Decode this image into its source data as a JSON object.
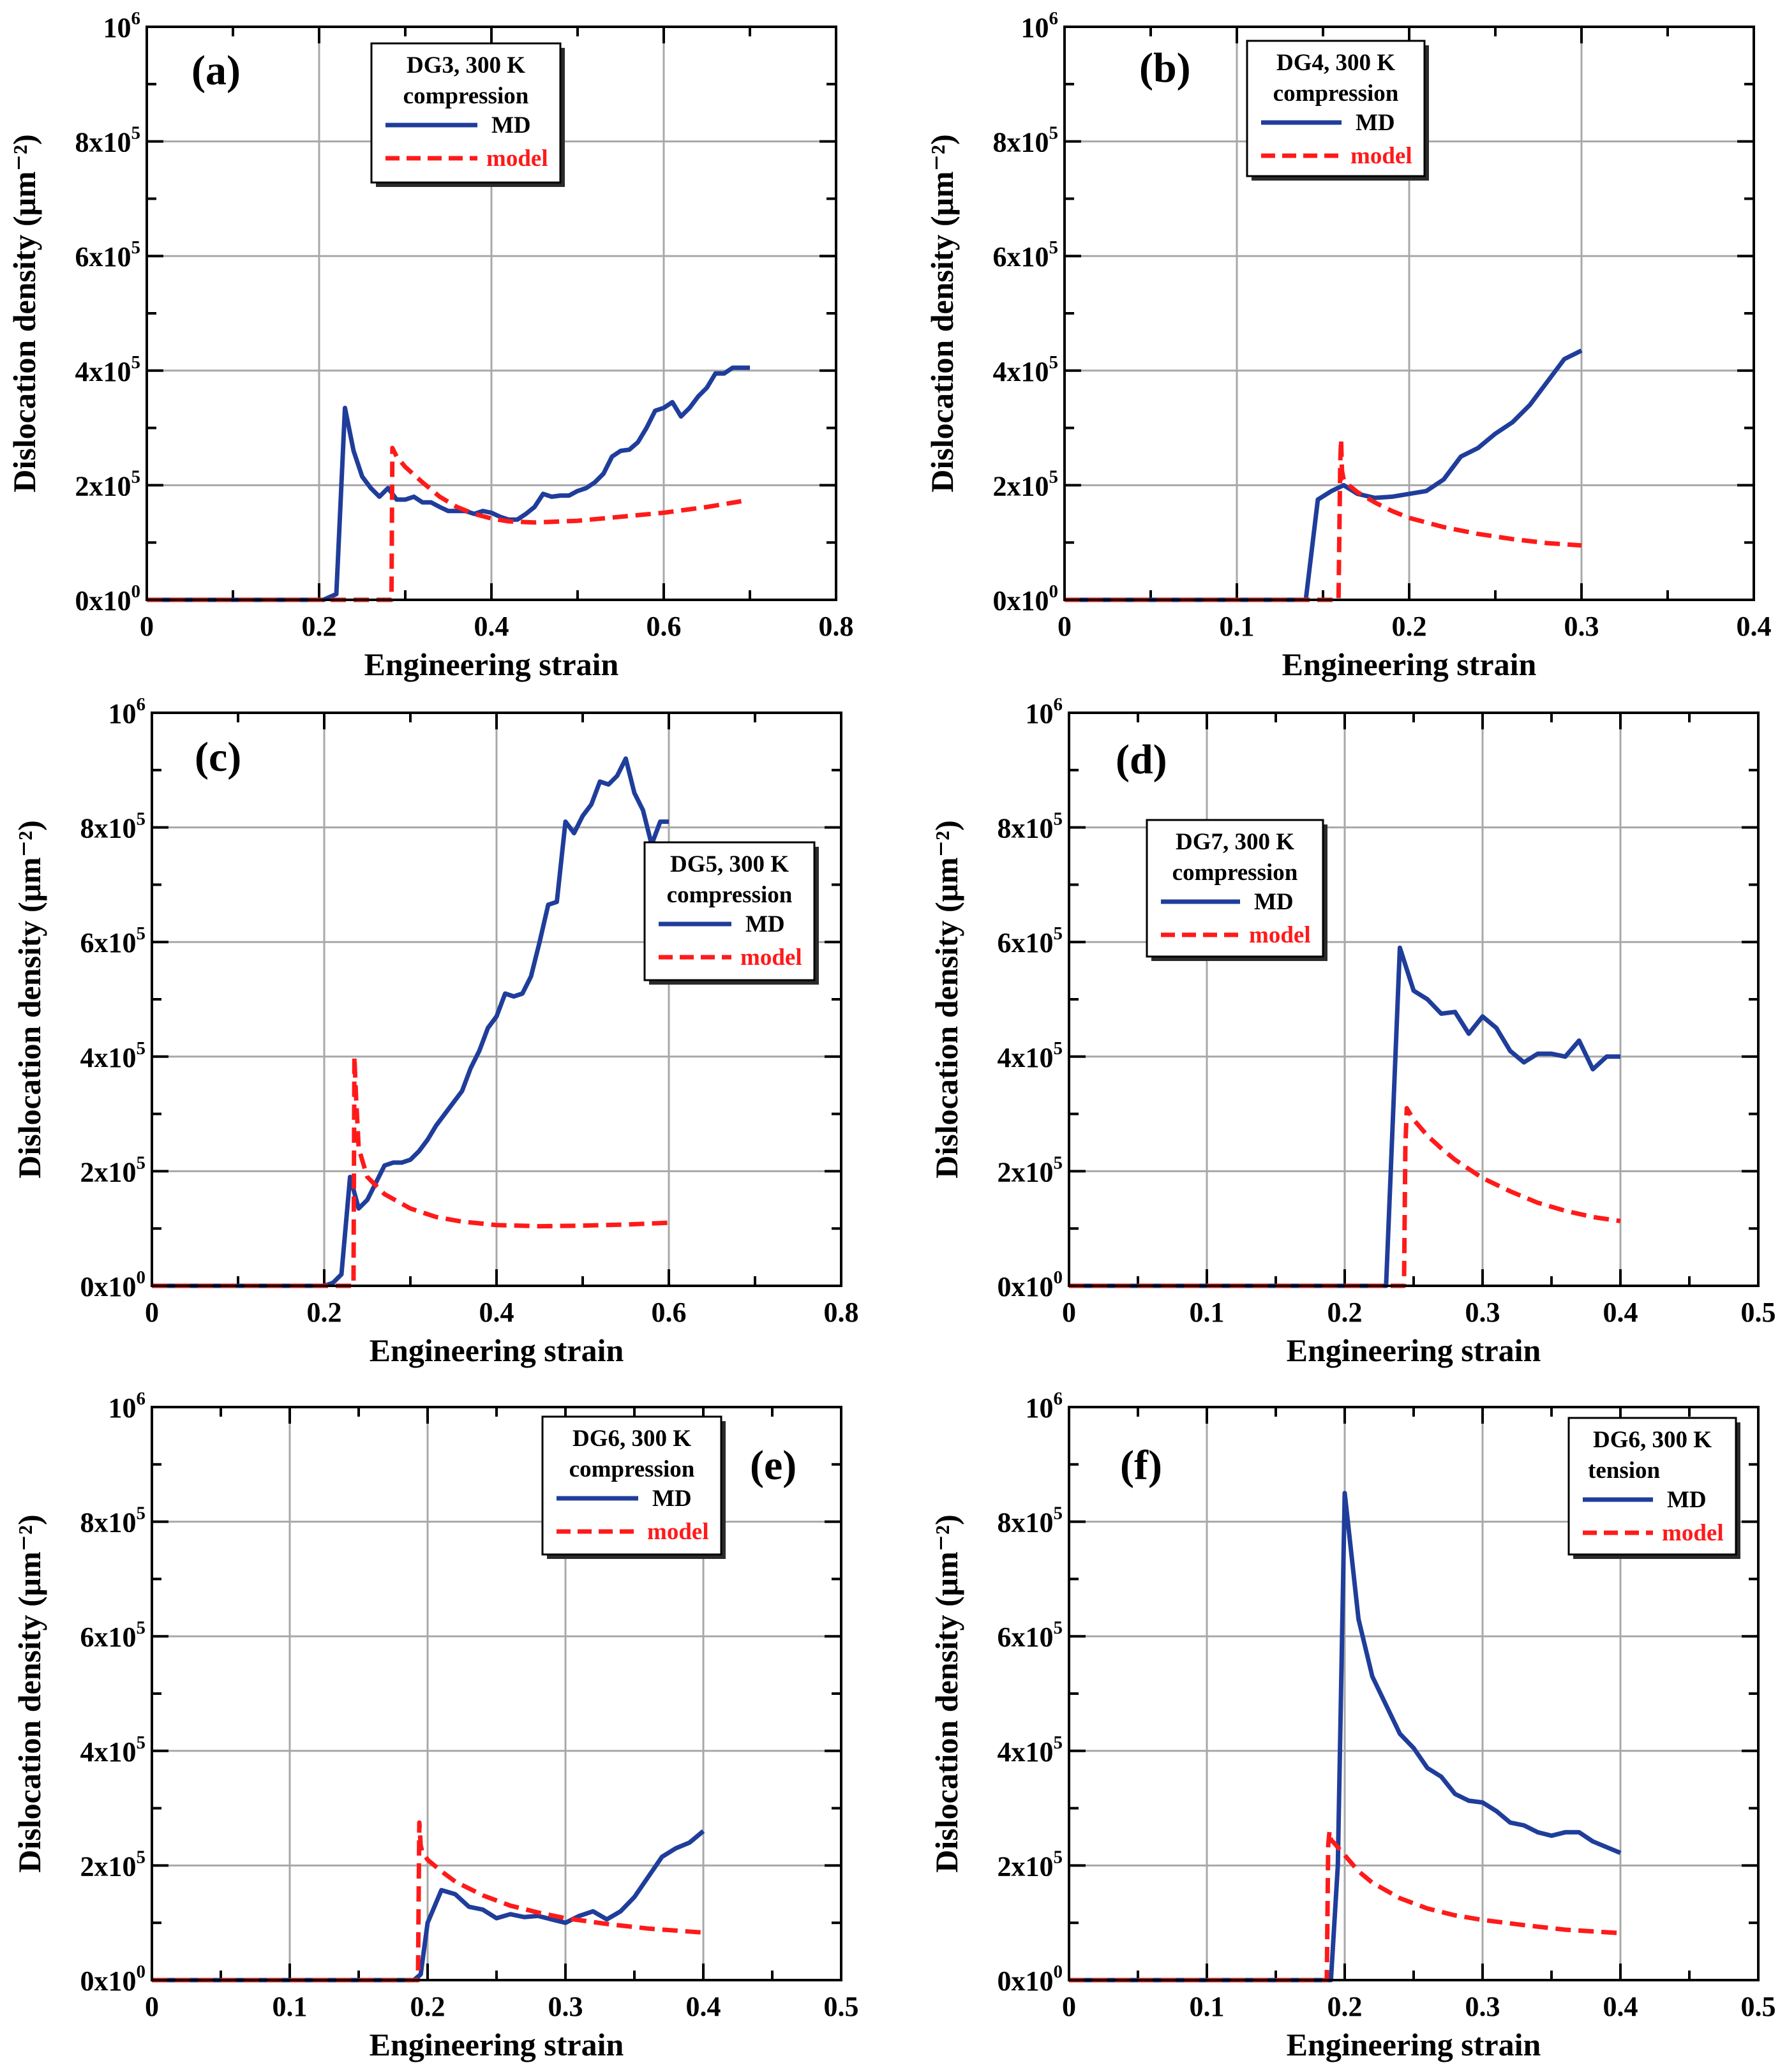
{
  "colors": {
    "md": "#1f3d9a",
    "model": "#ff1a1a",
    "grid": "#a8a8a8",
    "axis": "#000000"
  },
  "chart_data": [
    {
      "type": "line",
      "panel": "(a)",
      "xlabel": "Engineering strain",
      "ylabel": "Dislocation density (μm⁻²)",
      "xlim": [
        0,
        0.8
      ],
      "ylim": [
        0,
        1000000
      ],
      "xticks": [
        0,
        0.2,
        0.4,
        0.6,
        0.8
      ],
      "xtick_labels": [
        "0",
        "0.2",
        "0.4",
        "0.6",
        "0.8"
      ],
      "ytick_labels": [
        [
          "0x10",
          "0"
        ],
        [
          "2x10",
          "5"
        ],
        [
          "4x10",
          "5"
        ],
        [
          "6x10",
          "5"
        ],
        [
          "8x10",
          "5"
        ],
        [
          "10",
          "6"
        ]
      ],
      "legend": {
        "title": [
          "DG3, 300 K",
          "compression"
        ],
        "entries": [
          "MD",
          "model"
        ],
        "position": "top-center"
      },
      "series": [
        {
          "name": "MD",
          "style": "solid",
          "x": [
            0,
            0.2,
            0.205,
            0.22,
            0.23,
            0.24,
            0.25,
            0.26,
            0.27,
            0.28,
            0.29,
            0.3,
            0.31,
            0.32,
            0.33,
            0.34,
            0.35,
            0.36,
            0.37,
            0.38,
            0.39,
            0.4,
            0.41,
            0.42,
            0.43,
            0.44,
            0.45,
            0.46,
            0.47,
            0.48,
            0.49,
            0.5,
            0.51,
            0.52,
            0.53,
            0.54,
            0.55,
            0.56,
            0.57,
            0.58,
            0.59,
            0.6,
            0.61,
            0.62,
            0.63,
            0.64,
            0.65,
            0.66,
            0.67,
            0.68,
            0.69,
            0.7
          ],
          "y": [
            0,
            0,
            0,
            10000,
            335000,
            260000,
            215000,
            195000,
            180000,
            195000,
            175000,
            175000,
            180000,
            170000,
            170000,
            162000,
            155000,
            155000,
            155000,
            150000,
            155000,
            152000,
            145000,
            140000,
            140000,
            150000,
            162000,
            185000,
            180000,
            182000,
            182000,
            190000,
            195000,
            205000,
            220000,
            250000,
            260000,
            262000,
            275000,
            300000,
            330000,
            335000,
            345000,
            320000,
            335000,
            355000,
            370000,
            395000,
            395000,
            405000,
            405000,
            405000
          ]
        },
        {
          "name": "model",
          "style": "dashed",
          "x": [
            0,
            0.284,
            0.285,
            0.29,
            0.3,
            0.32,
            0.34,
            0.36,
            0.38,
            0.4,
            0.42,
            0.45,
            0.5,
            0.55,
            0.6,
            0.65,
            0.69
          ],
          "y": [
            0,
            0,
            265000,
            250000,
            232000,
            205000,
            180000,
            162000,
            150000,
            142000,
            137000,
            135000,
            138000,
            145000,
            152000,
            162000,
            172000
          ]
        }
      ]
    },
    {
      "type": "line",
      "panel": "(b)",
      "xlabel": "Engineering strain",
      "ylabel": "Dislocation density (μm⁻²)",
      "xlim": [
        0,
        0.4
      ],
      "ylim": [
        0,
        1000000
      ],
      "xticks": [
        0,
        0.1,
        0.2,
        0.3,
        0.4
      ],
      "xtick_labels": [
        "0",
        "0.1",
        "0.2",
        "0.3",
        "0.4"
      ],
      "ytick_labels": [
        [
          "0x10",
          "0"
        ],
        [
          "2x10",
          "5"
        ],
        [
          "4x10",
          "5"
        ],
        [
          "6x10",
          "5"
        ],
        [
          "8x10",
          "5"
        ],
        [
          "10",
          "6"
        ]
      ],
      "legend": {
        "title": [
          "DG4, 300 K",
          "compression"
        ],
        "entries": [
          "MD",
          "model"
        ],
        "position": "top-center"
      },
      "series": [
        {
          "name": "MD",
          "style": "solid",
          "x": [
            0,
            0.14,
            0.147,
            0.155,
            0.162,
            0.17,
            0.18,
            0.19,
            0.2,
            0.21,
            0.22,
            0.23,
            0.24,
            0.25,
            0.26,
            0.27,
            0.28,
            0.29,
            0.3
          ],
          "y": [
            0,
            0,
            175000,
            190000,
            200000,
            185000,
            178000,
            180000,
            185000,
            190000,
            210000,
            250000,
            265000,
            290000,
            310000,
            340000,
            380000,
            420000,
            435000
          ]
        },
        {
          "name": "model",
          "style": "dashed",
          "x": [
            0,
            0.159,
            0.16,
            0.1605,
            0.161,
            0.162,
            0.165,
            0.17,
            0.18,
            0.19,
            0.2,
            0.22,
            0.24,
            0.26,
            0.28,
            0.3
          ],
          "y": [
            0,
            0,
            240000,
            280000,
            225000,
            210000,
            200000,
            188000,
            170000,
            155000,
            143000,
            127000,
            115000,
            106000,
            99000,
            95000
          ]
        }
      ]
    },
    {
      "type": "line",
      "panel": "(c)",
      "xlabel": "Engineering strain",
      "ylabel": "Dislocation density (μm⁻²)",
      "xlim": [
        0,
        0.8
      ],
      "ylim": [
        0,
        1000000
      ],
      "xticks": [
        0,
        0.2,
        0.4,
        0.6,
        0.8
      ],
      "xtick_labels": [
        "0",
        "0.2",
        "0.4",
        "0.6",
        "0.8"
      ],
      "ytick_labels": [
        [
          "0x10",
          "0"
        ],
        [
          "2x10",
          "5"
        ],
        [
          "4x10",
          "5"
        ],
        [
          "6x10",
          "5"
        ],
        [
          "8x10",
          "5"
        ],
        [
          "10",
          "6"
        ]
      ],
      "legend": {
        "title": [
          "DG5, 300 K",
          "compression"
        ],
        "entries": [
          "MD",
          "model"
        ],
        "position": "right"
      },
      "series": [
        {
          "name": "MD",
          "style": "solid",
          "x": [
            0,
            0.2,
            0.21,
            0.22,
            0.23,
            0.24,
            0.25,
            0.26,
            0.27,
            0.28,
            0.29,
            0.3,
            0.31,
            0.32,
            0.33,
            0.34,
            0.35,
            0.36,
            0.37,
            0.38,
            0.39,
            0.4,
            0.41,
            0.42,
            0.43,
            0.44,
            0.45,
            0.46,
            0.47,
            0.48,
            0.49,
            0.5,
            0.51,
            0.52,
            0.53,
            0.54,
            0.55,
            0.56,
            0.57,
            0.58,
            0.59,
            0.6
          ],
          "y": [
            0,
            0,
            5000,
            20000,
            190000,
            135000,
            150000,
            180000,
            210000,
            215000,
            215000,
            220000,
            235000,
            255000,
            280000,
            300000,
            320000,
            340000,
            380000,
            410000,
            450000,
            470000,
            510000,
            505000,
            510000,
            540000,
            600000,
            665000,
            670000,
            810000,
            790000,
            820000,
            840000,
            880000,
            875000,
            890000,
            920000,
            860000,
            830000,
            770000,
            810000,
            810000
          ]
        },
        {
          "name": "model",
          "style": "dashed",
          "x": [
            0,
            0.234,
            0.235,
            0.237,
            0.24,
            0.25,
            0.27,
            0.3,
            0.33,
            0.36,
            0.4,
            0.45,
            0.5,
            0.55,
            0.6
          ],
          "y": [
            0,
            0,
            400000,
            330000,
            240000,
            190000,
            160000,
            135000,
            120000,
            112000,
            106000,
            104000,
            105000,
            107000,
            110000
          ]
        }
      ]
    },
    {
      "type": "line",
      "panel": "(d)",
      "xlabel": "Engineering strain",
      "ylabel": "Dislocation density (μm⁻²)",
      "xlim": [
        0,
        0.5
      ],
      "ylim": [
        0,
        1000000
      ],
      "xticks": [
        0,
        0.1,
        0.2,
        0.3,
        0.4,
        0.5
      ],
      "xtick_labels": [
        "0",
        "0.1",
        "0.2",
        "0.3",
        "0.4",
        "0.5"
      ],
      "ytick_labels": [
        [
          "0x10",
          "0"
        ],
        [
          "2x10",
          "5"
        ],
        [
          "4x10",
          "5"
        ],
        [
          "6x10",
          "5"
        ],
        [
          "8x10",
          "5"
        ],
        [
          "10",
          "6"
        ]
      ],
      "legend": {
        "title": [
          "DG7, 300 K",
          "compression"
        ],
        "entries": [
          "MD",
          "model"
        ],
        "position": "left"
      },
      "series": [
        {
          "name": "MD",
          "style": "solid",
          "x": [
            0,
            0.23,
            0.24,
            0.25,
            0.26,
            0.27,
            0.28,
            0.29,
            0.3,
            0.31,
            0.32,
            0.33,
            0.34,
            0.35,
            0.36,
            0.37,
            0.38,
            0.39,
            0.4
          ],
          "y": [
            0,
            0,
            590000,
            515000,
            500000,
            475000,
            478000,
            440000,
            470000,
            450000,
            410000,
            390000,
            405000,
            405000,
            400000,
            428000,
            378000,
            400000,
            400000
          ]
        },
        {
          "name": "model",
          "style": "dashed",
          "x": [
            0,
            0.243,
            0.244,
            0.245,
            0.25,
            0.26,
            0.27,
            0.28,
            0.3,
            0.32,
            0.34,
            0.36,
            0.38,
            0.4
          ],
          "y": [
            0,
            0,
            240000,
            310000,
            290000,
            262000,
            240000,
            220000,
            188000,
            165000,
            145000,
            131000,
            120000,
            113000
          ]
        }
      ]
    },
    {
      "type": "line",
      "panel": "(e)",
      "xlabel": "Engineering strain",
      "ylabel": "Dislocation density (μm⁻²)",
      "xlim": [
        0,
        0.5
      ],
      "ylim": [
        0,
        1000000
      ],
      "xticks": [
        0,
        0.1,
        0.2,
        0.3,
        0.4,
        0.5
      ],
      "xtick_labels": [
        "0",
        "0.1",
        "0.2",
        "0.3",
        "0.4",
        "0.5"
      ],
      "ytick_labels": [
        [
          "0x10",
          "0"
        ],
        [
          "2x10",
          "5"
        ],
        [
          "4x10",
          "5"
        ],
        [
          "6x10",
          "5"
        ],
        [
          "8x10",
          "5"
        ],
        [
          "10",
          "6"
        ]
      ],
      "legend": {
        "title": [
          "DG6, 300 K",
          "compression"
        ],
        "entries": [
          "MD",
          "model"
        ],
        "position": "top-right"
      },
      "series": [
        {
          "name": "MD",
          "style": "solid",
          "x": [
            0,
            0.19,
            0.195,
            0.2,
            0.21,
            0.22,
            0.23,
            0.24,
            0.25,
            0.26,
            0.27,
            0.28,
            0.29,
            0.3,
            0.31,
            0.32,
            0.33,
            0.34,
            0.35,
            0.36,
            0.37,
            0.38,
            0.39,
            0.4
          ],
          "y": [
            0,
            0,
            10000,
            100000,
            157000,
            150000,
            128000,
            123000,
            108000,
            115000,
            110000,
            112000,
            106000,
            100000,
            112000,
            120000,
            106000,
            120000,
            145000,
            180000,
            215000,
            230000,
            240000,
            260000
          ]
        },
        {
          "name": "model",
          "style": "dashed",
          "x": [
            0,
            0.193,
            0.194,
            0.195,
            0.196,
            0.2,
            0.21,
            0.22,
            0.24,
            0.26,
            0.28,
            0.3,
            0.33,
            0.36,
            0.4
          ],
          "y": [
            0,
            0,
            275000,
            235000,
            225000,
            210000,
            190000,
            172000,
            148000,
            130000,
            118000,
            108000,
            98000,
            90000,
            83000
          ]
        }
      ]
    },
    {
      "type": "line",
      "panel": "(f)",
      "xlabel": "Engineering strain",
      "ylabel": "Dislocation density (μm⁻²)",
      "xlim": [
        0,
        0.5
      ],
      "ylim": [
        0,
        1000000
      ],
      "xticks": [
        0,
        0.1,
        0.2,
        0.3,
        0.4,
        0.5
      ],
      "xtick_labels": [
        "0",
        "0.1",
        "0.2",
        "0.3",
        "0.4",
        "0.5"
      ],
      "ytick_labels": [
        [
          "0x10",
          "0"
        ],
        [
          "2x10",
          "5"
        ],
        [
          "4x10",
          "5"
        ],
        [
          "6x10",
          "5"
        ],
        [
          "8x10",
          "5"
        ],
        [
          "10",
          "6"
        ]
      ],
      "legend": {
        "title": [
          "DG6, 300 K",
          "tension"
        ],
        "entries": [
          "MD",
          "model"
        ],
        "position": "top-right"
      },
      "series": [
        {
          "name": "MD",
          "style": "solid",
          "x": [
            0,
            0.19,
            0.195,
            0.2,
            0.21,
            0.22,
            0.23,
            0.24,
            0.25,
            0.26,
            0.27,
            0.28,
            0.29,
            0.3,
            0.31,
            0.32,
            0.33,
            0.34,
            0.35,
            0.36,
            0.37,
            0.38,
            0.39,
            0.4
          ],
          "y": [
            0,
            0,
            200000,
            850000,
            630000,
            530000,
            480000,
            430000,
            405000,
            370000,
            355000,
            325000,
            313000,
            310000,
            295000,
            275000,
            270000,
            258000,
            252000,
            258000,
            258000,
            242000,
            232000,
            222000
          ]
        },
        {
          "name": "model",
          "style": "dashed",
          "x": [
            0,
            0.187,
            0.188,
            0.189,
            0.19,
            0.192,
            0.2,
            0.21,
            0.22,
            0.24,
            0.26,
            0.28,
            0.3,
            0.33,
            0.36,
            0.4
          ],
          "y": [
            0,
            0,
            235000,
            260000,
            245000,
            240000,
            218000,
            190000,
            170000,
            143000,
            125000,
            113000,
            105000,
            96000,
            88000,
            82000
          ]
        }
      ]
    }
  ]
}
